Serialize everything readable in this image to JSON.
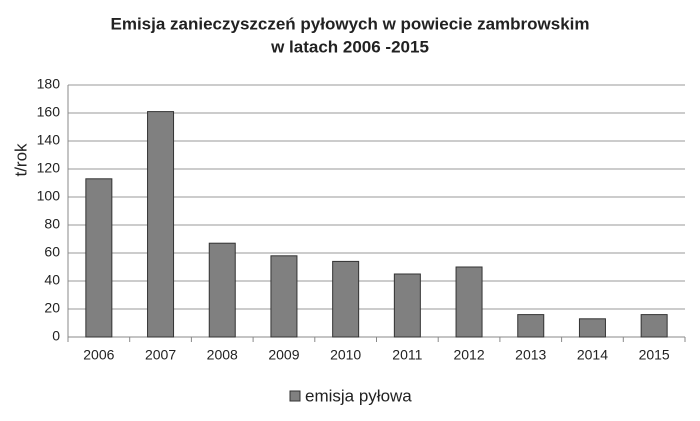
{
  "chart_data": {
    "type": "bar",
    "title": [
      "Emisja zanieczyszczeń pyłowych w powiecie zambrowskim",
      "w latach 2006 -2015"
    ],
    "y_label": "t/rok",
    "categories": [
      "2006",
      "2007",
      "2008",
      "2009",
      "2010",
      "2011",
      "2012",
      "2013",
      "2014",
      "2015"
    ],
    "series": [
      {
        "name": "emisja pyłowa",
        "color": "#808080",
        "values": [
          113,
          161,
          67,
          58,
          54,
          45,
          50,
          16,
          13,
          16
        ]
      }
    ],
    "ylim": [
      0,
      180
    ],
    "yticks": [
      0,
      20,
      40,
      60,
      80,
      100,
      120,
      140,
      160,
      180
    ],
    "grid": true,
    "legend": "bottom"
  }
}
